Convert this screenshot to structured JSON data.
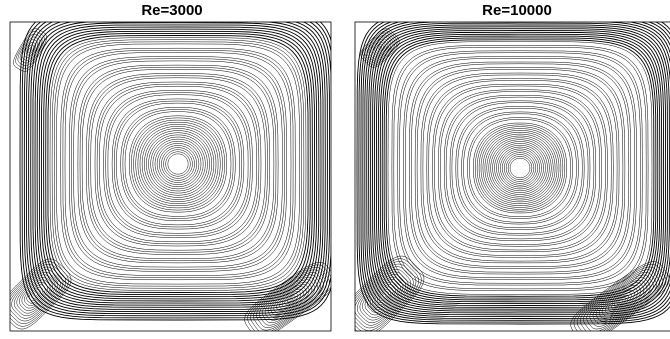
{
  "panels": [
    {
      "title": "Re=3000"
    },
    {
      "title": "Re=10000"
    }
  ]
}
